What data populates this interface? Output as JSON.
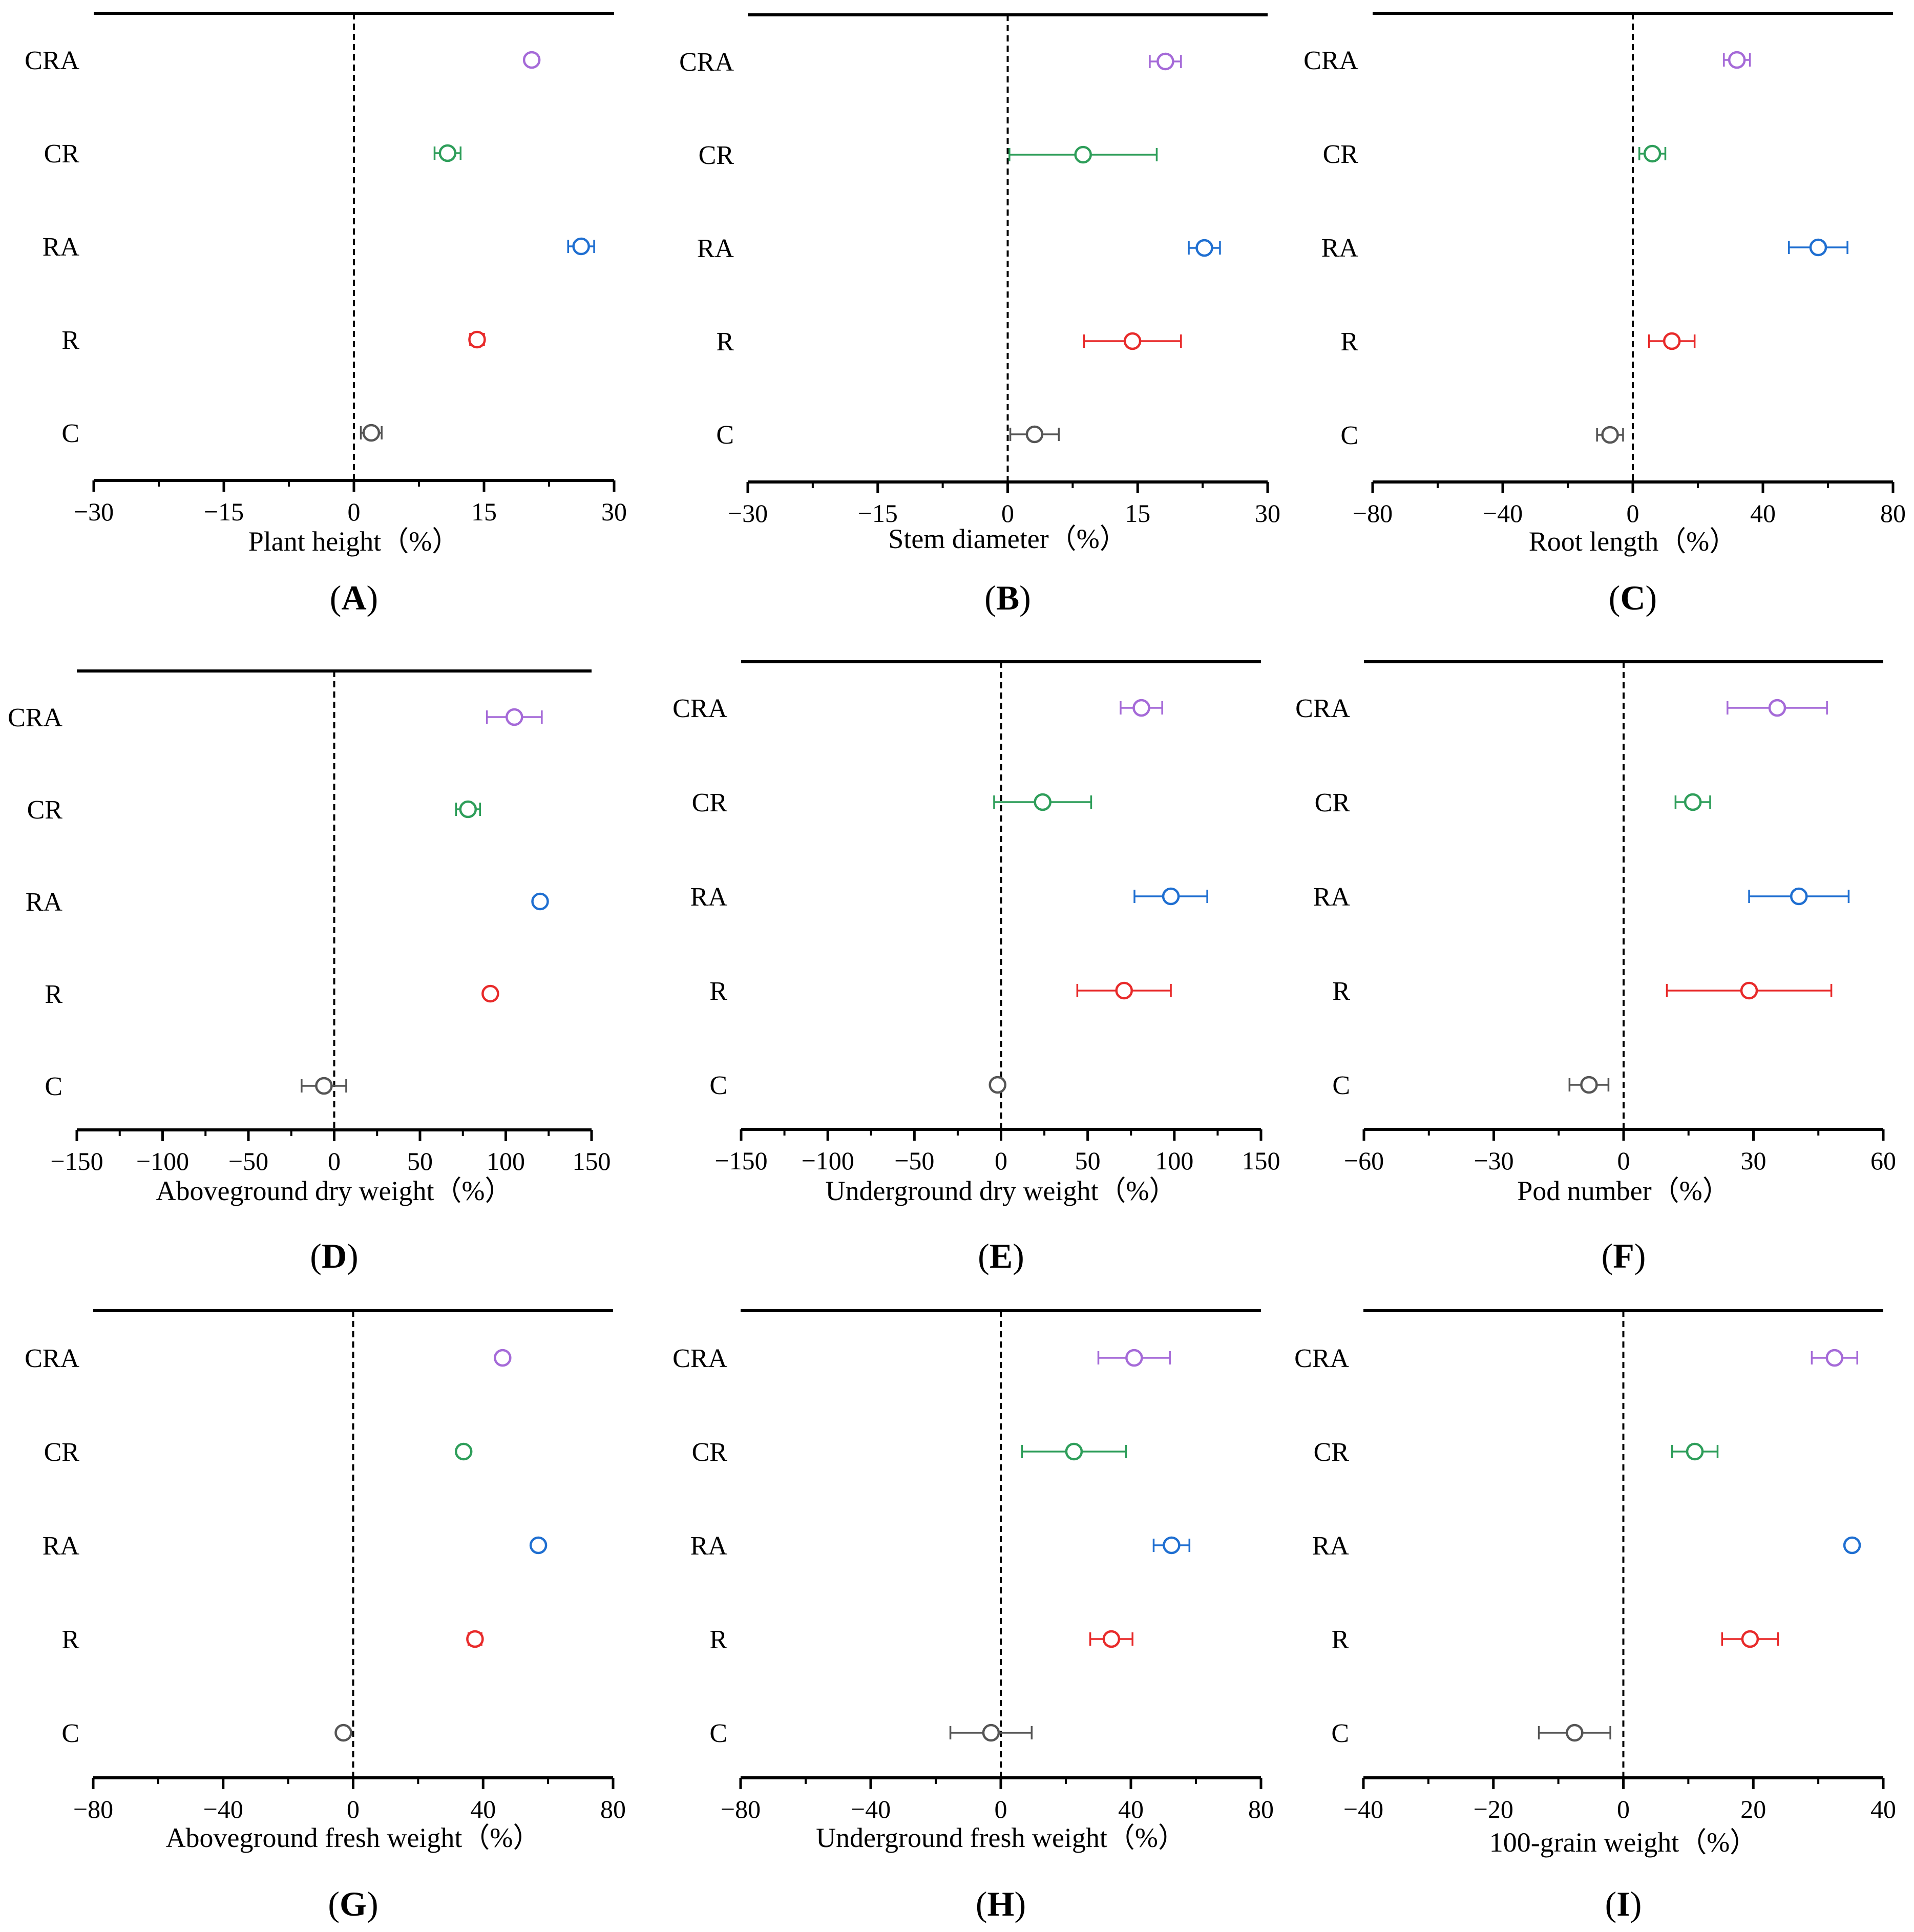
{
  "figure": {
    "categories": [
      "CRA",
      "CR",
      "RA",
      "R",
      "C"
    ],
    "colors": {
      "CRA": "#a56ad8",
      "CR": "#2e9e5a",
      "RA": "#1f6fd1",
      "R": "#e82a2a",
      "C": "#555555"
    }
  },
  "chart_data": [
    {
      "panel": "A",
      "type": "scatter",
      "xlabel": "Plant height（%）",
      "xlim": [
        -30,
        30
      ],
      "xticks": [
        -30,
        -15,
        0,
        15,
        30
      ],
      "xtick_labels": [
        "−30",
        "−15",
        "0",
        "15",
        "30"
      ],
      "points": [
        {
          "category": "CRA",
          "value": 20.5,
          "err": 0.0
        },
        {
          "category": "CR",
          "value": 10.8,
          "err": 1.5
        },
        {
          "category": "RA",
          "value": 26.2,
          "err": 1.5
        },
        {
          "category": "R",
          "value": 14.2,
          "err": 0.8
        },
        {
          "category": "C",
          "value": 2.0,
          "err": 1.2
        }
      ]
    },
    {
      "panel": "B",
      "type": "scatter",
      "xlabel": "Stem diameter（%）",
      "xlim": [
        -30,
        30
      ],
      "xticks": [
        -30,
        -15,
        0,
        15,
        30
      ],
      "xtick_labels": [
        "−30",
        "−15",
        "0",
        "15",
        "30"
      ],
      "points": [
        {
          "category": "CRA",
          "value": 18.2,
          "err": 1.8
        },
        {
          "category": "CR",
          "value": 8.7,
          "err": 8.5
        },
        {
          "category": "RA",
          "value": 22.7,
          "err": 1.8
        },
        {
          "category": "R",
          "value": 14.4,
          "err": 5.6
        },
        {
          "category": "C",
          "value": 3.1,
          "err": 2.8
        }
      ]
    },
    {
      "panel": "C",
      "type": "scatter",
      "xlabel": "Root length（%）",
      "xlim": [
        -80,
        80
      ],
      "xticks": [
        -80,
        -40,
        0,
        40,
        80
      ],
      "xtick_labels": [
        "−80",
        "−40",
        "0",
        "40",
        "80"
      ],
      "points": [
        {
          "category": "CRA",
          "value": 32,
          "err": 4
        },
        {
          "category": "CR",
          "value": 6,
          "err": 4
        },
        {
          "category": "RA",
          "value": 57,
          "err": 9
        },
        {
          "category": "R",
          "value": 12,
          "err": 7
        },
        {
          "category": "C",
          "value": -7,
          "err": 4
        }
      ]
    },
    {
      "panel": "D",
      "type": "scatter",
      "xlabel": "Aboveground dry weight（%）",
      "xlim": [
        -150,
        150
      ],
      "xticks": [
        -150,
        -100,
        -50,
        0,
        50,
        100,
        150
      ],
      "xtick_labels": [
        "−150",
        "−100",
        "−50",
        "0",
        "50",
        "100",
        "150"
      ],
      "points": [
        {
          "category": "CRA",
          "value": 105,
          "err": 16
        },
        {
          "category": "CR",
          "value": 78,
          "err": 7
        },
        {
          "category": "RA",
          "value": 120,
          "err": 3
        },
        {
          "category": "R",
          "value": 91,
          "err": 0
        },
        {
          "category": "C",
          "value": -6,
          "err": 13
        }
      ]
    },
    {
      "panel": "E",
      "type": "scatter",
      "xlabel": "Underground dry weight（%）",
      "xlim": [
        -150,
        150
      ],
      "xticks": [
        -150,
        -100,
        -50,
        0,
        50,
        100,
        150
      ],
      "xtick_labels": [
        "−150",
        "−100",
        "−50",
        "0",
        "50",
        "100",
        "150"
      ],
      "points": [
        {
          "category": "CRA",
          "value": 81,
          "err": 12
        },
        {
          "category": "CR",
          "value": 24,
          "err": 28
        },
        {
          "category": "RA",
          "value": 98,
          "err": 21
        },
        {
          "category": "R",
          "value": 71,
          "err": 27
        },
        {
          "category": "C",
          "value": -2,
          "err": 2
        }
      ]
    },
    {
      "panel": "F",
      "type": "scatter",
      "xlabel": "Pod number（%）",
      "xlim": [
        -60,
        60
      ],
      "xticks": [
        -60,
        -30,
        0,
        30,
        60
      ],
      "xtick_labels": [
        "−60",
        "−30",
        "0",
        "30",
        "60"
      ],
      "points": [
        {
          "category": "CRA",
          "value": 35.5,
          "err": 11.5
        },
        {
          "category": "CR",
          "value": 16,
          "err": 4
        },
        {
          "category": "RA",
          "value": 40.5,
          "err": 11.5
        },
        {
          "category": "R",
          "value": 29,
          "err": 19
        },
        {
          "category": "C",
          "value": -8,
          "err": 4.5
        }
      ]
    },
    {
      "panel": "G",
      "type": "scatter",
      "xlabel": "Aboveground fresh weight（%）",
      "xlim": [
        -80,
        80
      ],
      "xticks": [
        -80,
        -40,
        0,
        40,
        80
      ],
      "xtick_labels": [
        "−80",
        "−40",
        "0",
        "40",
        "80"
      ],
      "points": [
        {
          "category": "CRA",
          "value": 46,
          "err": 0
        },
        {
          "category": "CR",
          "value": 34,
          "err": 0
        },
        {
          "category": "RA",
          "value": 57,
          "err": 0
        },
        {
          "category": "R",
          "value": 37.5,
          "err": 2
        },
        {
          "category": "C",
          "value": -3,
          "err": 0
        }
      ]
    },
    {
      "panel": "H",
      "type": "scatter",
      "xlabel": "Underground fresh weight（%）",
      "xlim": [
        -80,
        80
      ],
      "xticks": [
        -80,
        -40,
        0,
        40,
        80
      ],
      "xtick_labels": [
        "−80",
        "−40",
        "0",
        "40",
        "80"
      ],
      "points": [
        {
          "category": "CRA",
          "value": 41,
          "err": 11
        },
        {
          "category": "CR",
          "value": 22.5,
          "err": 16
        },
        {
          "category": "RA",
          "value": 52.5,
          "err": 5.5
        },
        {
          "category": "R",
          "value": 34,
          "err": 6.5
        },
        {
          "category": "C",
          "value": -3,
          "err": 12.5
        }
      ]
    },
    {
      "panel": "I",
      "type": "scatter",
      "xlabel": "100-grain weight（%）",
      "xlim": [
        -40,
        40
      ],
      "xticks": [
        -40,
        -20,
        0,
        20,
        40
      ],
      "xtick_labels": [
        "−40",
        "−20",
        "0",
        "20",
        "40"
      ],
      "points": [
        {
          "category": "CRA",
          "value": 32.5,
          "err": 3.5
        },
        {
          "category": "CR",
          "value": 11,
          "err": 3.5
        },
        {
          "category": "RA",
          "value": 35.2,
          "err": 0.8
        },
        {
          "category": "R",
          "value": 19.5,
          "err": 4.3
        },
        {
          "category": "C",
          "value": -7.5,
          "err": 5.5
        }
      ]
    }
  ]
}
